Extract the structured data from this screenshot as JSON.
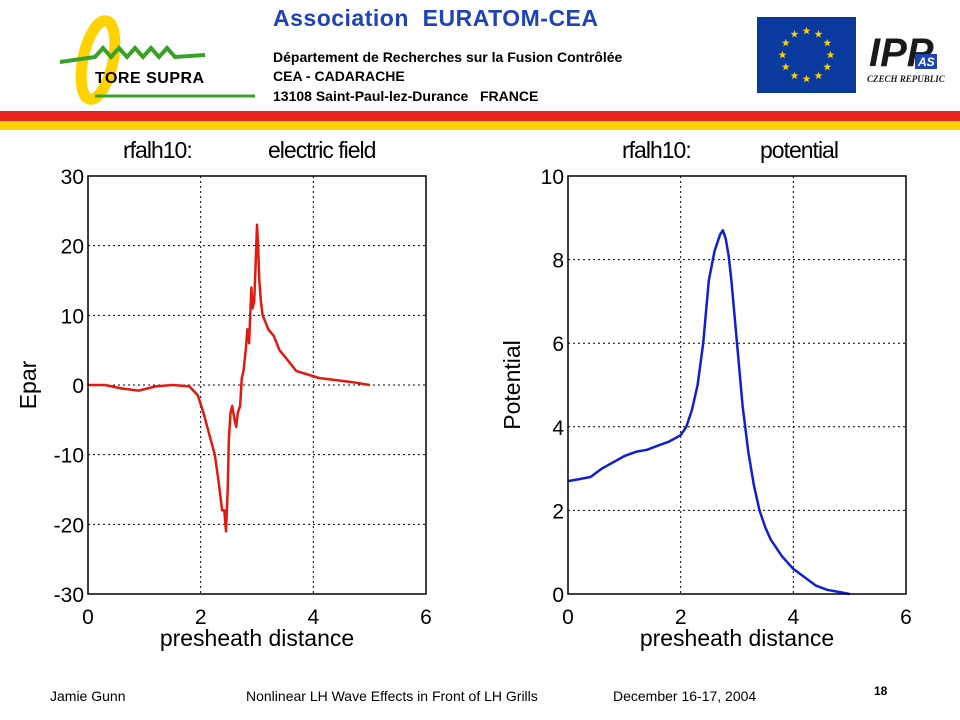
{
  "header": {
    "logo_text": "TORE SUPRA",
    "association": "Association  EURATOM-CEA",
    "address_lines": [
      "Département de Recherches sur la Fusion Contrôlée",
      "CEA - CADARACHE",
      "13108 Saint-Paul-lez-Durance   FRANCE"
    ],
    "ipp_logo_text": "IPP",
    "ipp_logo_sub": "AS",
    "ipp_country": "CZECH REPUBLIC"
  },
  "colors": {
    "header_blue": "#1f43b5",
    "stripe_red": "#e52421",
    "stripe_yellow": "#ffd200",
    "logo_green": "#3aa028",
    "logo_yellow": "#ffd200",
    "eu_blue": "#0a3a9e",
    "eu_star": "#ffd200",
    "series_red": "#e01a10",
    "series_blue": "#1020d0"
  },
  "chart_data": [
    {
      "type": "line",
      "title_left": "rfalh10:",
      "title_right": "electric field",
      "xlabel": "presheath distance",
      "ylabel": "Epar",
      "xlim": [
        0,
        6
      ],
      "ylim": [
        -30,
        30
      ],
      "xticks": [
        0,
        2,
        4,
        6
      ],
      "yticks": [
        -30,
        -20,
        -10,
        0,
        10,
        20,
        30
      ],
      "grid": true,
      "series": [
        {
          "color": "#e01a10",
          "x": [
            0,
            0.3,
            0.6,
            0.9,
            1.2,
            1.5,
            1.8,
            1.95,
            2.05,
            2.15,
            2.25,
            2.32,
            2.38,
            2.42,
            2.45,
            2.48,
            2.5,
            2.53,
            2.56,
            2.6,
            2.63,
            2.66,
            2.7,
            2.73,
            2.76,
            2.8,
            2.83,
            2.86,
            2.88,
            2.9,
            2.92,
            2.95,
            2.97,
            3.0,
            3.02,
            3.04,
            3.07,
            3.1,
            3.15,
            3.2,
            3.3,
            3.4,
            3.5,
            3.7,
            3.9,
            4.1,
            4.4,
            4.7,
            5.0
          ],
          "values": [
            0,
            0,
            -0.5,
            -0.8,
            -0.2,
            0,
            -0.2,
            -1.5,
            -4,
            -7,
            -10,
            -14,
            -18,
            -18,
            -21,
            -15,
            -8,
            -4,
            -3,
            -5,
            -6,
            -4,
            -3,
            1,
            2,
            5,
            8,
            6,
            10,
            14,
            11,
            12,
            16,
            23,
            20,
            15,
            12,
            10,
            9,
            8,
            7,
            5,
            4,
            2,
            1.5,
            1,
            0.7,
            0.4,
            0
          ]
        }
      ]
    },
    {
      "type": "line",
      "title_left": "rfalh10:",
      "title_right": "potential",
      "xlabel": "presheath distance",
      "ylabel": "Potential",
      "xlim": [
        0,
        6
      ],
      "ylim": [
        0,
        10
      ],
      "xticks": [
        0,
        2,
        4,
        6
      ],
      "yticks": [
        0,
        2,
        4,
        6,
        8,
        10
      ],
      "grid": true,
      "series": [
        {
          "color": "#1020d0",
          "x": [
            0,
            0.2,
            0.4,
            0.6,
            0.8,
            1.0,
            1.2,
            1.4,
            1.6,
            1.8,
            2.0,
            2.1,
            2.2,
            2.3,
            2.4,
            2.5,
            2.6,
            2.7,
            2.75,
            2.8,
            2.85,
            2.9,
            3.0,
            3.1,
            3.2,
            3.3,
            3.4,
            3.5,
            3.6,
            3.8,
            4.0,
            4.2,
            4.4,
            4.6,
            4.8,
            5.0
          ],
          "values": [
            2.7,
            2.75,
            2.8,
            3.0,
            3.15,
            3.3,
            3.4,
            3.45,
            3.55,
            3.65,
            3.8,
            4.0,
            4.4,
            5.0,
            6.0,
            7.5,
            8.2,
            8.6,
            8.7,
            8.5,
            8.1,
            7.5,
            6.0,
            4.5,
            3.4,
            2.6,
            2.0,
            1.6,
            1.3,
            0.9,
            0.6,
            0.4,
            0.2,
            0.1,
            0.05,
            0.0
          ]
        }
      ]
    }
  ],
  "footer": {
    "author": "Jamie Gunn",
    "title": "Nonlinear LH Wave Effects in Front of LH Grills",
    "date": "December 16-17, 2004",
    "page": "18"
  }
}
